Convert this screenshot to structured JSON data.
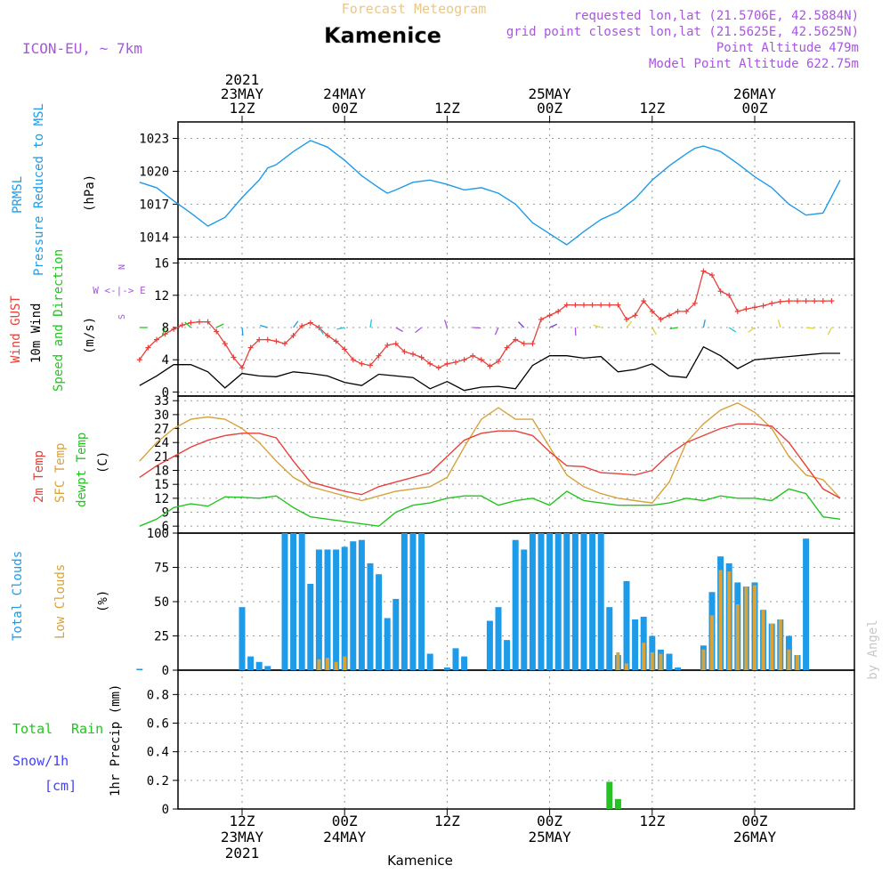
{
  "header": {
    "product": "Forecast Meteogram",
    "location": "Kamenice",
    "model": "ICON-EU, ~ 7km",
    "requested": "requested lon,lat (21.5706E, 42.5884N)",
    "grid_point": "grid point closest lon,lat (21.5625E, 42.5625N)",
    "point_altitude": "Point Altitude 479m",
    "model_altitude": "Model Point Altitude 622.75m",
    "footer_location": "Kamenice",
    "credit": "by Angel"
  },
  "time_axis": {
    "top_labels": [
      {
        "h": 12,
        "lines": [
          "2021",
          "23MAY",
          "12Z"
        ]
      },
      {
        "h": 24,
        "lines": [
          "24MAY",
          "00Z"
        ]
      },
      {
        "h": 36,
        "lines": [
          "12Z"
        ]
      },
      {
        "h": 48,
        "lines": [
          "25MAY",
          "00Z"
        ]
      },
      {
        "h": 60,
        "lines": [
          "12Z"
        ]
      },
      {
        "h": 72,
        "lines": [
          "26MAY",
          "00Z"
        ]
      }
    ],
    "bottom_labels": [
      {
        "h": 12,
        "lines": [
          "12Z",
          "23MAY",
          "2021"
        ]
      },
      {
        "h": 24,
        "lines": [
          "00Z",
          "24MAY"
        ]
      },
      {
        "h": 36,
        "lines": [
          "12Z"
        ]
      },
      {
        "h": 48,
        "lines": [
          "00Z",
          "25MAY"
        ]
      },
      {
        "h": 60,
        "lines": [
          "12Z"
        ]
      },
      {
        "h": 72,
        "lines": [
          "00Z",
          "26MAY"
        ]
      }
    ]
  },
  "panels": {
    "pressure": {
      "labels": [
        "PRMSL",
        "Pressure Reduced to MSL",
        "(hPa)"
      ],
      "ticks": [
        "1023",
        "1020",
        "1017",
        "1014"
      ]
    },
    "wind": {
      "labels": [
        "Wind GUST",
        "10m Wind",
        "Speed and Direction",
        "(m/s)"
      ],
      "ticks": [
        "16",
        "12",
        "8",
        "4",
        "0"
      ],
      "compass": [
        "N",
        "W <-|-> E",
        "S"
      ]
    },
    "temperature": {
      "labels": [
        "2m Temp",
        "SFC Temp",
        "dewpt Temp",
        "(C)"
      ],
      "ticks": [
        "33",
        "30",
        "27",
        "24",
        "21",
        "18",
        "15",
        "12",
        "9",
        "6"
      ]
    },
    "clouds": {
      "labels": [
        "Total Clouds",
        "Low Clouds",
        "(%)"
      ],
      "ticks": [
        "100",
        "75",
        "50",
        "25",
        "0"
      ]
    },
    "precip": {
      "labels": [
        "Total",
        "Rain",
        "Snow/1h",
        "[cm]",
        "1hr Precip (mm)"
      ],
      "ticks": [
        "0.8",
        "0.6",
        "0.4",
        "0.2",
        "0"
      ]
    }
  },
  "colors": {
    "blue": "#1e9be8",
    "red": "#e8403a",
    "orange": "#d9a23b",
    "green": "#22c51f",
    "purple": "#a855e0",
    "black": "#000000",
    "snow": "#4040ff"
  },
  "chart_data": [
    {
      "type": "line",
      "title": "PRMSL",
      "ylabel": "(hPa)",
      "ylim": [
        1012,
        1024.5
      ],
      "x_unit": "hours from 23MAY 00Z",
      "series": [
        {
          "name": "PRMSL",
          "x": [
            0,
            2,
            4,
            6,
            8,
            10,
            12,
            14,
            15,
            16,
            18,
            20,
            22,
            24,
            26,
            28,
            29,
            30,
            32,
            34,
            36,
            38,
            40,
            42,
            44,
            46,
            48,
            50,
            52,
            54,
            56,
            58,
            60,
            62,
            64,
            65,
            66,
            68,
            70,
            72,
            74,
            76,
            78,
            80,
            82
          ],
          "values": [
            1019.0,
            1018.5,
            1017.3,
            1016.2,
            1015.0,
            1015.8,
            1017.6,
            1019.2,
            1020.3,
            1020.6,
            1021.8,
            1022.8,
            1022.2,
            1021.0,
            1019.6,
            1018.5,
            1018.0,
            1018.3,
            1019.0,
            1019.2,
            1018.8,
            1018.3,
            1018.5,
            1018.0,
            1017.0,
            1015.3,
            1014.3,
            1013.3,
            1014.5,
            1015.6,
            1016.3,
            1017.5,
            1019.2,
            1020.5,
            1021.6,
            1022.1,
            1022.3,
            1021.8,
            1020.7,
            1019.5,
            1018.5,
            1017.0,
            1016.0,
            1016.2,
            1019.2
          ]
        }
      ]
    },
    {
      "type": "line",
      "title": "Wind",
      "ylabel": "(m/s)",
      "ylim": [
        -0.5,
        16.5
      ],
      "x_unit": "hours from 23MAY 00Z",
      "series": [
        {
          "name": "Wind GUST",
          "x": [
            0,
            1,
            2,
            3,
            4,
            5,
            6,
            7,
            8,
            9,
            10,
            11,
            12,
            13,
            14,
            15,
            16,
            17,
            18,
            19,
            20,
            21,
            22,
            23,
            24,
            25,
            26,
            27,
            28,
            29,
            30,
            31,
            32,
            33,
            34,
            35,
            36,
            37,
            38,
            39,
            40,
            41,
            42,
            43,
            44,
            45,
            46,
            47,
            48,
            49,
            50,
            51,
            52,
            53,
            54,
            55,
            56,
            57,
            58,
            59,
            60,
            61,
            62,
            63,
            64,
            65,
            66,
            67,
            68,
            69,
            70,
            71,
            72,
            73,
            74,
            75,
            76,
            77,
            78,
            79,
            80,
            81
          ],
          "values": [
            4.0,
            5.5,
            6.5,
            7.2,
            7.8,
            8.3,
            8.6,
            8.7,
            8.7,
            7.5,
            6.0,
            4.3,
            3.0,
            5.5,
            6.5,
            6.5,
            6.3,
            6.0,
            7.0,
            8.2,
            8.6,
            8.0,
            7.0,
            6.3,
            5.3,
            4.0,
            3.5,
            3.3,
            4.5,
            5.8,
            6.0,
            5.0,
            4.7,
            4.3,
            3.5,
            3.0,
            3.5,
            3.7,
            4.0,
            4.5,
            4.0,
            3.2,
            3.8,
            5.5,
            6.5,
            6.0,
            6.0,
            9.0,
            9.5,
            10.0,
            10.8,
            10.8,
            10.8,
            10.8,
            10.8,
            10.8,
            10.8,
            9.0,
            9.5,
            11.3,
            10.0,
            9.0,
            9.5,
            10.0,
            10.0,
            11.0,
            15.0,
            14.5,
            12.5,
            12.0,
            10.0,
            10.3,
            10.5,
            10.7,
            11.0,
            11.2,
            11.3,
            11.3,
            11.3,
            11.3,
            11.3,
            11.3
          ]
        },
        {
          "name": "10m Wind",
          "x": [
            0,
            2,
            4,
            6,
            8,
            10,
            12,
            14,
            16,
            18,
            20,
            22,
            24,
            26,
            28,
            30,
            32,
            34,
            36,
            38,
            40,
            42,
            44,
            46,
            48,
            50,
            52,
            54,
            56,
            58,
            60,
            62,
            64,
            66,
            68,
            70,
            72,
            74,
            76,
            78,
            80,
            82
          ],
          "values": [
            0.8,
            2.0,
            3.4,
            3.4,
            2.5,
            0.5,
            2.3,
            2.0,
            1.9,
            2.5,
            2.3,
            2.0,
            1.2,
            0.8,
            2.2,
            2.0,
            1.8,
            0.4,
            1.3,
            0.2,
            0.6,
            0.7,
            0.4,
            3.3,
            4.5,
            4.5,
            4.2,
            4.4,
            2.5,
            2.8,
            3.5,
            2.0,
            1.8,
            5.6,
            4.5,
            2.9,
            4.0,
            4.2,
            4.4,
            4.6,
            4.8,
            4.8
          ]
        }
      ]
    },
    {
      "type": "line",
      "title": "Temperature",
      "ylabel": "(C)",
      "ylim": [
        4.5,
        34
      ],
      "x_unit": "hours from 23MAY 00Z",
      "series": [
        {
          "name": "2m Temp",
          "x": [
            0,
            2,
            4,
            6,
            8,
            10,
            12,
            14,
            16,
            18,
            20,
            22,
            24,
            26,
            28,
            30,
            32,
            34,
            36,
            38,
            40,
            42,
            44,
            46,
            48,
            50,
            52,
            54,
            56,
            58,
            60,
            62,
            64,
            66,
            68,
            70,
            72,
            74,
            76,
            78,
            80,
            82
          ],
          "values": [
            16.5,
            19.0,
            21.0,
            23.0,
            24.5,
            25.5,
            26.0,
            26.0,
            25.0,
            20.0,
            15.5,
            14.5,
            13.5,
            12.8,
            14.5,
            15.5,
            16.5,
            17.5,
            21.0,
            24.5,
            26.0,
            26.5,
            26.5,
            25.5,
            22.0,
            19.0,
            18.8,
            17.5,
            17.3,
            17.0,
            18.0,
            21.5,
            24.0,
            25.5,
            27.0,
            28.0,
            28.0,
            27.5,
            24.0,
            19.0,
            14.0,
            12.0
          ]
        },
        {
          "name": "SFC Temp",
          "x": [
            0,
            2,
            4,
            6,
            8,
            10,
            12,
            14,
            16,
            18,
            20,
            22,
            24,
            26,
            28,
            30,
            32,
            34,
            36,
            38,
            40,
            42,
            44,
            46,
            48,
            50,
            52,
            54,
            56,
            58,
            60,
            62,
            64,
            66,
            68,
            70,
            72,
            74,
            76,
            78,
            80,
            82
          ],
          "values": [
            20.0,
            24.0,
            27.0,
            29.0,
            29.5,
            29.0,
            27.0,
            24.0,
            20.0,
            16.5,
            14.5,
            13.5,
            12.5,
            11.5,
            12.5,
            13.5,
            14.0,
            14.5,
            16.5,
            23.0,
            29.0,
            31.5,
            29.0,
            29.0,
            23.0,
            17.0,
            14.5,
            13.0,
            12.0,
            11.5,
            11.0,
            15.5,
            24.0,
            28.0,
            31.0,
            32.5,
            30.5,
            27.0,
            21.0,
            17.0,
            16.0,
            12.0
          ]
        },
        {
          "name": "dewpt Temp",
          "x": [
            0,
            2,
            4,
            6,
            8,
            10,
            12,
            14,
            16,
            18,
            20,
            22,
            24,
            26,
            28,
            30,
            32,
            34,
            36,
            38,
            40,
            42,
            44,
            46,
            48,
            50,
            52,
            54,
            56,
            58,
            60,
            62,
            64,
            66,
            68,
            70,
            72,
            74,
            76,
            78,
            80,
            82
          ],
          "values": [
            6.0,
            7.5,
            10.0,
            10.8,
            10.3,
            12.3,
            12.2,
            12.0,
            12.5,
            10.0,
            8.0,
            7.5,
            7.0,
            6.5,
            6.0,
            9.0,
            10.5,
            11.0,
            12.0,
            12.5,
            12.5,
            10.5,
            11.5,
            12.0,
            10.5,
            13.5,
            11.5,
            11.0,
            10.5,
            10.5,
            10.5,
            11.0,
            12.0,
            11.5,
            12.5,
            12.0,
            12.0,
            11.5,
            14.0,
            13.0,
            8.0,
            7.5
          ]
        }
      ]
    },
    {
      "type": "bar",
      "title": "Clouds",
      "ylabel": "(%)",
      "ylim": [
        0,
        100
      ],
      "x_unit": "hours from 23MAY 00Z",
      "x": [
        0,
        1,
        2,
        3,
        4,
        5,
        6,
        7,
        8,
        9,
        10,
        11,
        12,
        13,
        14,
        15,
        16,
        17,
        18,
        19,
        20,
        21,
        22,
        23,
        24,
        25,
        26,
        27,
        28,
        29,
        30,
        31,
        32,
        33,
        34,
        35,
        36,
        37,
        38,
        39,
        40,
        41,
        42,
        43,
        44,
        45,
        46,
        47,
        48,
        49,
        50,
        51,
        52,
        53,
        54,
        55,
        56,
        57,
        58,
        59,
        60,
        61,
        62,
        63,
        64,
        65,
        66,
        67,
        68,
        69,
        70,
        71,
        72,
        73,
        74,
        75,
        76,
        77,
        78,
        79,
        80,
        81
      ],
      "series": [
        {
          "name": "Total Clouds",
          "values": [
            1,
            0,
            0,
            0,
            0,
            0,
            0,
            0,
            0,
            0,
            0,
            0,
            46,
            10,
            6,
            3,
            0,
            100,
            100,
            100,
            63,
            88,
            88,
            88,
            90,
            94,
            95,
            78,
            70,
            38,
            52,
            100,
            100,
            100,
            12,
            0,
            2,
            16,
            10,
            0,
            0,
            36,
            46,
            22,
            95,
            88,
            100,
            100,
            100,
            100,
            100,
            100,
            100,
            100,
            100,
            46,
            11,
            65,
            37,
            39,
            25,
            15,
            12,
            2,
            0,
            0,
            18,
            57,
            83,
            78,
            64,
            61,
            64,
            44,
            34,
            37,
            25,
            11,
            96,
            0,
            0,
            0
          ]
        },
        {
          "name": "Low Clouds",
          "values": [
            0,
            0,
            0,
            0,
            0,
            0,
            0,
            0,
            0,
            0,
            0,
            0,
            0,
            0,
            0,
            0,
            0,
            0,
            0,
            0,
            0,
            8,
            9,
            6,
            10,
            0,
            0,
            0,
            0,
            0,
            0,
            0,
            0,
            0,
            0,
            0,
            0,
            0,
            0,
            0,
            0,
            0,
            0,
            0,
            0,
            0,
            0,
            0,
            0,
            0,
            0,
            0,
            0,
            0,
            0,
            0,
            13,
            5,
            0,
            20,
            13,
            12,
            0,
            0,
            0,
            0,
            15,
            40,
            73,
            72,
            48,
            61,
            62,
            44,
            34,
            37,
            15,
            11,
            0,
            0,
            0,
            0
          ]
        }
      ]
    },
    {
      "type": "bar",
      "title": "1hr Precip",
      "ylabel": "1hr Precip (mm)",
      "ylim": [
        0,
        0.97
      ],
      "x_unit": "hours from 23MAY 00Z",
      "series": [
        {
          "name": "Total Rain",
          "x": [
            55,
            56
          ],
          "values": [
            0.19,
            0.07
          ]
        }
      ]
    }
  ]
}
